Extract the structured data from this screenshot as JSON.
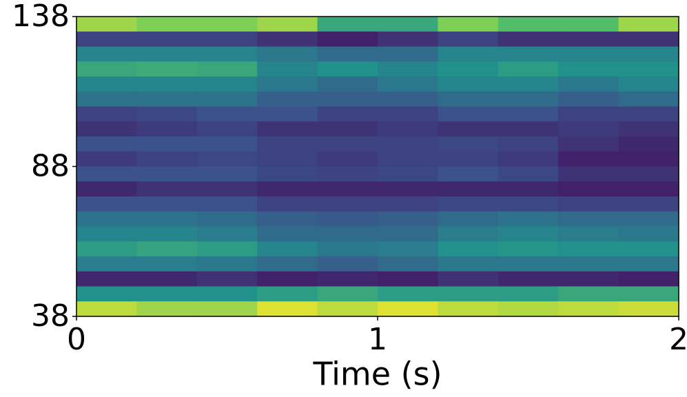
{
  "chart_data": {
    "type": "heatmap",
    "xlabel": "Time (s)",
    "colormap": "viridis",
    "xlim": [
      0,
      2
    ],
    "xticks": [
      0,
      1,
      2
    ],
    "ylim": [
      38,
      138
    ],
    "yticks": [
      38,
      88,
      138
    ],
    "z": [
      [
        0.85,
        0.8,
        0.8,
        0.85,
        0.6,
        0.6,
        0.8,
        0.7,
        0.7,
        0.85
      ],
      [
        0.2,
        0.2,
        0.2,
        0.15,
        0.1,
        0.15,
        0.2,
        0.15,
        0.15,
        0.15
      ],
      [
        0.45,
        0.45,
        0.45,
        0.4,
        0.35,
        0.35,
        0.45,
        0.45,
        0.45,
        0.45
      ],
      [
        0.6,
        0.62,
        0.6,
        0.45,
        0.5,
        0.45,
        0.5,
        0.55,
        0.5,
        0.5
      ],
      [
        0.45,
        0.45,
        0.45,
        0.4,
        0.35,
        0.4,
        0.45,
        0.45,
        0.4,
        0.45
      ],
      [
        0.38,
        0.38,
        0.38,
        0.3,
        0.3,
        0.3,
        0.35,
        0.35,
        0.3,
        0.35
      ],
      [
        0.2,
        0.22,
        0.25,
        0.25,
        0.2,
        0.2,
        0.25,
        0.25,
        0.2,
        0.2
      ],
      [
        0.15,
        0.18,
        0.2,
        0.15,
        0.15,
        0.18,
        0.15,
        0.15,
        0.18,
        0.15
      ],
      [
        0.25,
        0.25,
        0.25,
        0.2,
        0.2,
        0.2,
        0.22,
        0.2,
        0.15,
        0.12
      ],
      [
        0.18,
        0.2,
        0.22,
        0.2,
        0.18,
        0.2,
        0.2,
        0.18,
        0.1,
        0.1
      ],
      [
        0.25,
        0.25,
        0.25,
        0.22,
        0.2,
        0.22,
        0.25,
        0.22,
        0.15,
        0.15
      ],
      [
        0.12,
        0.15,
        0.15,
        0.12,
        0.12,
        0.12,
        0.12,
        0.12,
        0.1,
        0.1
      ],
      [
        0.25,
        0.25,
        0.25,
        0.2,
        0.2,
        0.2,
        0.22,
        0.22,
        0.2,
        0.2
      ],
      [
        0.38,
        0.38,
        0.35,
        0.3,
        0.28,
        0.3,
        0.35,
        0.38,
        0.35,
        0.35
      ],
      [
        0.45,
        0.45,
        0.42,
        0.35,
        0.35,
        0.35,
        0.42,
        0.45,
        0.42,
        0.4
      ],
      [
        0.55,
        0.58,
        0.55,
        0.45,
        0.4,
        0.42,
        0.5,
        0.52,
        0.5,
        0.5
      ],
      [
        0.42,
        0.42,
        0.4,
        0.35,
        0.3,
        0.35,
        0.4,
        0.4,
        0.4,
        0.4
      ],
      [
        0.12,
        0.12,
        0.15,
        0.1,
        0.12,
        0.1,
        0.15,
        0.12,
        0.12,
        0.1
      ],
      [
        0.5,
        0.5,
        0.5,
        0.55,
        0.6,
        0.55,
        0.55,
        0.55,
        0.6,
        0.6
      ],
      [
        0.9,
        0.85,
        0.85,
        0.95,
        0.9,
        0.95,
        0.9,
        0.88,
        0.9,
        0.92
      ]
    ]
  }
}
